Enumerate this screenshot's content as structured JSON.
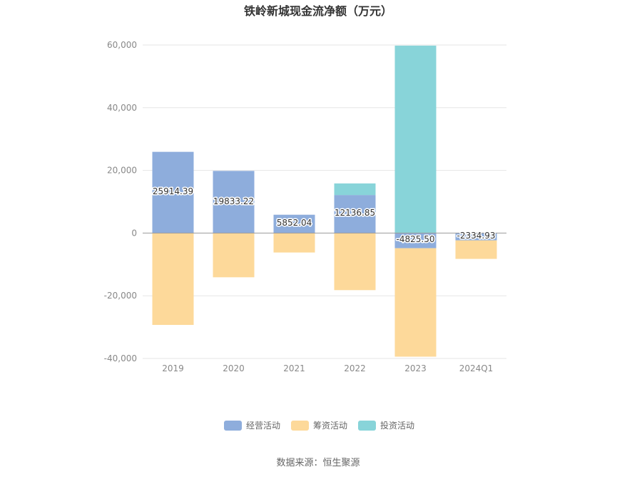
{
  "chart_data": {
    "type": "bar",
    "stacked": true,
    "title": "铁岭新城现金流净额（万元）",
    "categories": [
      "2019",
      "2020",
      "2021",
      "2022",
      "2023",
      "2024Q1"
    ],
    "ylim": [
      -40000,
      60000
    ],
    "yticks": [
      -40000,
      -20000,
      0,
      20000,
      40000,
      60000
    ],
    "ytick_labels": [
      "-40,000",
      "-20,000",
      "0",
      "20,000",
      "40,000",
      "60,000"
    ],
    "grid": true,
    "legend_position": "bottom",
    "series": [
      {
        "name": "经营活动",
        "color": "#8eaddc",
        "values": [
          25914.39,
          19833.22,
          5852.04,
          12136.85,
          -4825.5,
          -2334.93
        ]
      },
      {
        "name": "筹资活动",
        "color": "#fdd99a",
        "values": [
          -29300,
          -14100,
          -6200,
          -18200,
          -34600,
          -5900
        ]
      },
      {
        "name": "投资活动",
        "color": "#88d4d9",
        "values": [
          0,
          0,
          0,
          3700,
          59800,
          0
        ]
      }
    ],
    "data_labels": [
      "25914.39",
      "19833.22",
      "5852.04",
      "12136.85",
      "-4825.50",
      "-2334.93"
    ]
  },
  "source_text": "数据来源：恒生聚源"
}
